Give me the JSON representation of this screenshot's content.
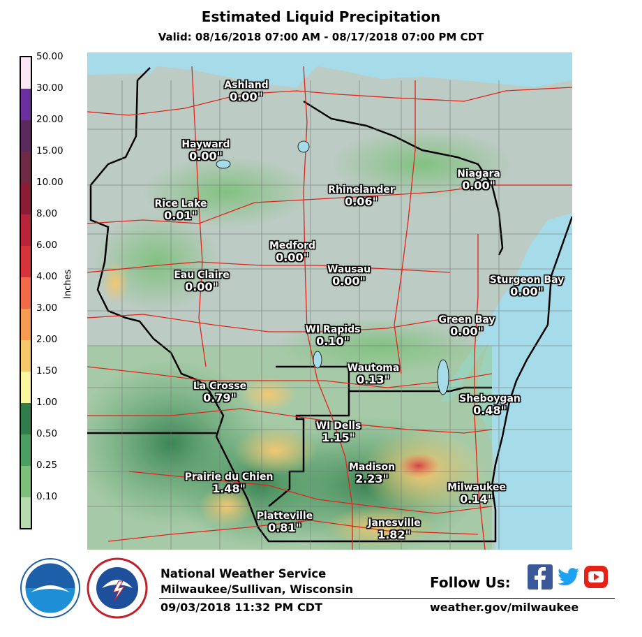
{
  "header": {
    "title": "Estimated Liquid Precipitation",
    "subtitle": "Valid: 08/16/2018 07:00 AM - 08/17/2018 07:00 PM CDT"
  },
  "legend": {
    "axis_label": "Inches",
    "ticks": [
      "50.00",
      "30.00",
      "20.00",
      "15.00",
      "10.00",
      "8.00",
      "6.00",
      "4.00",
      "3.00",
      "2.00",
      "1.50",
      "1.00",
      "0.50",
      "0.25",
      "0.10"
    ],
    "colors": [
      "#fde6f4",
      "#6b2fa0",
      "#5a2a5f",
      "#6e2a45",
      "#8b1c35",
      "#b8243a",
      "#d6333a",
      "#f26a46",
      "#f79a52",
      "#f7c86a",
      "#fdf6a0",
      "#2e7d4a",
      "#4aa060",
      "#7cc07a",
      "#b6dcae",
      "#d8eecb"
    ]
  },
  "cities": [
    {
      "name": "Ashland",
      "value": "0.00\""
    },
    {
      "name": "Hayward",
      "value": "0.00\""
    },
    {
      "name": "Niagara",
      "value": "0.00\""
    },
    {
      "name": "Rhinelander",
      "value": "0.06\""
    },
    {
      "name": "Rice Lake",
      "value": "0.01\""
    },
    {
      "name": "Medford",
      "value": "0.00\""
    },
    {
      "name": "Eau Claire",
      "value": "0.00\""
    },
    {
      "name": "Wausau",
      "value": "0.00\""
    },
    {
      "name": "Sturgeon Bay",
      "value": "0.00\""
    },
    {
      "name": "Green Bay",
      "value": "0.00\""
    },
    {
      "name": "WI Rapids",
      "value": "0.10\""
    },
    {
      "name": "Wautoma",
      "value": "0.13\""
    },
    {
      "name": "La Crosse",
      "value": "0.79\""
    },
    {
      "name": "Sheboygan",
      "value": "0.48\""
    },
    {
      "name": "WI Dells",
      "value": "1.15\""
    },
    {
      "name": "Madison",
      "value": "2.23\""
    },
    {
      "name": "Prairie du Chien",
      "value": "1.48\""
    },
    {
      "name": "Milwaukee",
      "value": "0.14\""
    },
    {
      "name": "Platteville",
      "value": "0.81\""
    },
    {
      "name": "Janesville",
      "value": "1.82\""
    }
  ],
  "footer": {
    "org": "National Weather Service",
    "office": "Milwaukee/Sullivan, Wisconsin",
    "timestamp": "09/03/2018 11:32 PM CDT",
    "follow": "Follow Us:",
    "url": "weather.gov/milwaukee",
    "social_icons": [
      "facebook-icon",
      "twitter-icon",
      "youtube-icon"
    ]
  }
}
